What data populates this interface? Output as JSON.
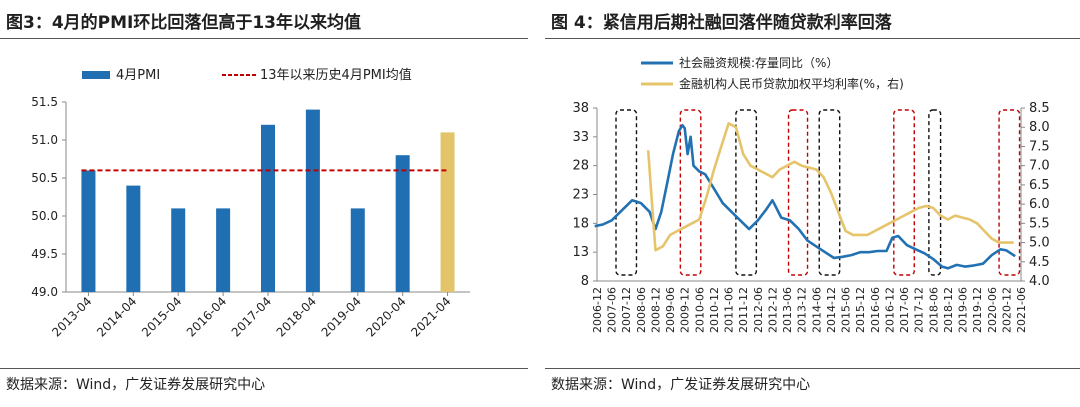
{
  "left": {
    "title": "图3：4月的PMI环比回落但高于13年以来均值",
    "source": "数据来源：Wind，广发证券发展研究中心",
    "chart_data": {
      "type": "bar",
      "categories": [
        "2013-04",
        "2014-04",
        "2015-04",
        "2016-04",
        "2017-04",
        "2018-04",
        "2019-04",
        "2020-04",
        "2021-04"
      ],
      "series": [
        {
          "name": "4月PMI",
          "values": [
            50.6,
            50.4,
            50.1,
            50.1,
            51.2,
            51.4,
            50.1,
            50.8,
            51.1
          ]
        }
      ],
      "reference_line": {
        "name": "13年以来历史4月PMI均值",
        "value": 50.6
      },
      "ylim": [
        49.0,
        51.5
      ],
      "yticks": [
        "49.0",
        "49.5",
        "50.0",
        "50.5",
        "51.0",
        "51.5"
      ],
      "legend_position": "top",
      "colors": {
        "bar": "#1f6fb2",
        "highlight": "#e3c46a",
        "reference": "#c00000"
      },
      "highlight_index": 8
    }
  },
  "right": {
    "title": "图 4：紧信用后期社融回落伴随贷款利率回落",
    "source": "数据来源：Wind，广发证券发展研究中心",
    "chart_data": {
      "type": "line",
      "xlabels": [
        "2006-12",
        "2007-06",
        "2007-12",
        "2008-06",
        "2008-12",
        "2009-06",
        "2009-12",
        "2010-06",
        "2010-12",
        "2011-06",
        "2011-12",
        "2012-06",
        "2012-12",
        "2013-06",
        "2013-12",
        "2014-06",
        "2014-12",
        "2015-06",
        "2015-12",
        "2016-06",
        "2016-12",
        "2017-06",
        "2017-12",
        "2018-06",
        "2018-12",
        "2019-06",
        "2019-12",
        "2020-06",
        "2020-12",
        "2021-06"
      ],
      "yticks_left": [
        "8",
        "13",
        "18",
        "23",
        "28",
        "33",
        "38"
      ],
      "yticks_right": [
        "4.0",
        "4.5",
        "5.0",
        "5.5",
        "6.0",
        "6.5",
        "7.0",
        "7.5",
        "8.0",
        "8.5"
      ],
      "ylim_left": [
        8,
        38
      ],
      "ylim_right": [
        4.0,
        8.5
      ],
      "legend_position": "top-left",
      "series": [
        {
          "name": "社会融资规模:存量同比（%）",
          "axis": "left",
          "color": "#2271b3",
          "x": [
            2006.92,
            2007.2,
            2007.5,
            2007.9,
            2008.2,
            2008.5,
            2008.8,
            2009.0,
            2009.2,
            2009.4,
            2009.6,
            2009.8,
            2009.92,
            2010.0,
            2010.1,
            2010.2,
            2010.3,
            2010.5,
            2010.7,
            2011.0,
            2011.3,
            2011.6,
            2011.9,
            2012.2,
            2012.5,
            2012.8,
            2013.0,
            2013.1,
            2013.3,
            2013.6,
            2013.9,
            2014.2,
            2014.5,
            2014.8,
            2015.1,
            2015.4,
            2015.7,
            2016.0,
            2016.3,
            2016.6,
            2016.9,
            2017.1,
            2017.3,
            2017.6,
            2017.9,
            2018.2,
            2018.5,
            2018.8,
            2019.0,
            2019.3,
            2019.6,
            2019.9,
            2020.2,
            2020.5,
            2020.8,
            2021.0,
            2021.3
          ],
          "y": [
            17.5,
            17.8,
            18.5,
            20.5,
            22,
            21.5,
            20,
            17,
            20,
            25,
            30,
            34,
            35,
            34.5,
            30,
            33,
            28,
            27,
            26.5,
            24,
            21.5,
            20,
            18.5,
            17,
            18.5,
            20.5,
            22,
            21,
            19,
            18.5,
            17,
            15,
            14,
            13,
            12,
            12.2,
            12.5,
            13,
            13,
            13.2,
            13.2,
            15.5,
            15.8,
            14.2,
            13.5,
            12.8,
            11.8,
            10.5,
            10.2,
            10.8,
            10.5,
            10.7,
            11,
            12.5,
            13.5,
            13.3,
            12.3
          ]
        },
        {
          "name": "金融机构人民币贷款加权平均利率(%，右)",
          "axis": "right",
          "color": "#e6c46a",
          "x": [
            2008.75,
            2008.9,
            2009.0,
            2009.25,
            2009.5,
            2009.75,
            2010.0,
            2010.25,
            2010.5,
            2010.75,
            2011.0,
            2011.25,
            2011.5,
            2011.75,
            2012.0,
            2012.25,
            2012.5,
            2012.75,
            2013.0,
            2013.25,
            2013.5,
            2013.75,
            2014.0,
            2014.25,
            2014.5,
            2014.75,
            2015.0,
            2015.25,
            2015.5,
            2015.75,
            2016.0,
            2016.25,
            2016.5,
            2016.75,
            2017.0,
            2017.25,
            2017.5,
            2017.75,
            2018.0,
            2018.25,
            2018.5,
            2018.75,
            2019.0,
            2019.25,
            2019.5,
            2019.75,
            2020.0,
            2020.25,
            2020.5,
            2020.75,
            2021.0,
            2021.25
          ],
          "y": [
            7.4,
            5.8,
            4.8,
            4.9,
            5.2,
            5.3,
            5.4,
            5.5,
            5.6,
            6.2,
            6.9,
            7.5,
            8.1,
            8.0,
            7.3,
            7.0,
            6.9,
            6.8,
            6.7,
            6.9,
            7.0,
            7.1,
            7.0,
            6.95,
            6.9,
            6.7,
            6.3,
            5.8,
            5.3,
            5.2,
            5.2,
            5.2,
            5.3,
            5.4,
            5.5,
            5.6,
            5.7,
            5.8,
            5.9,
            5.95,
            5.9,
            5.7,
            5.6,
            5.7,
            5.65,
            5.6,
            5.5,
            5.3,
            5.1,
            5.0,
            5.0,
            5.0
          ]
        }
      ],
      "boxes": [
        {
          "from": 2007.65,
          "to": 2008.35,
          "color": "#111111"
        },
        {
          "from": 2009.85,
          "to": 2010.55,
          "color": "#c00000"
        },
        {
          "from": 2011.75,
          "to": 2012.45,
          "color": "#111111"
        },
        {
          "from": 2013.55,
          "to": 2014.2,
          "color": "#c00000"
        },
        {
          "from": 2014.6,
          "to": 2015.3,
          "color": "#111111"
        },
        {
          "from": 2017.15,
          "to": 2017.85,
          "color": "#c00000"
        },
        {
          "from": 2018.35,
          "to": 2018.75,
          "color": "#111111"
        },
        {
          "from": 2020.75,
          "to": 2021.45,
          "color": "#c00000"
        }
      ]
    }
  }
}
